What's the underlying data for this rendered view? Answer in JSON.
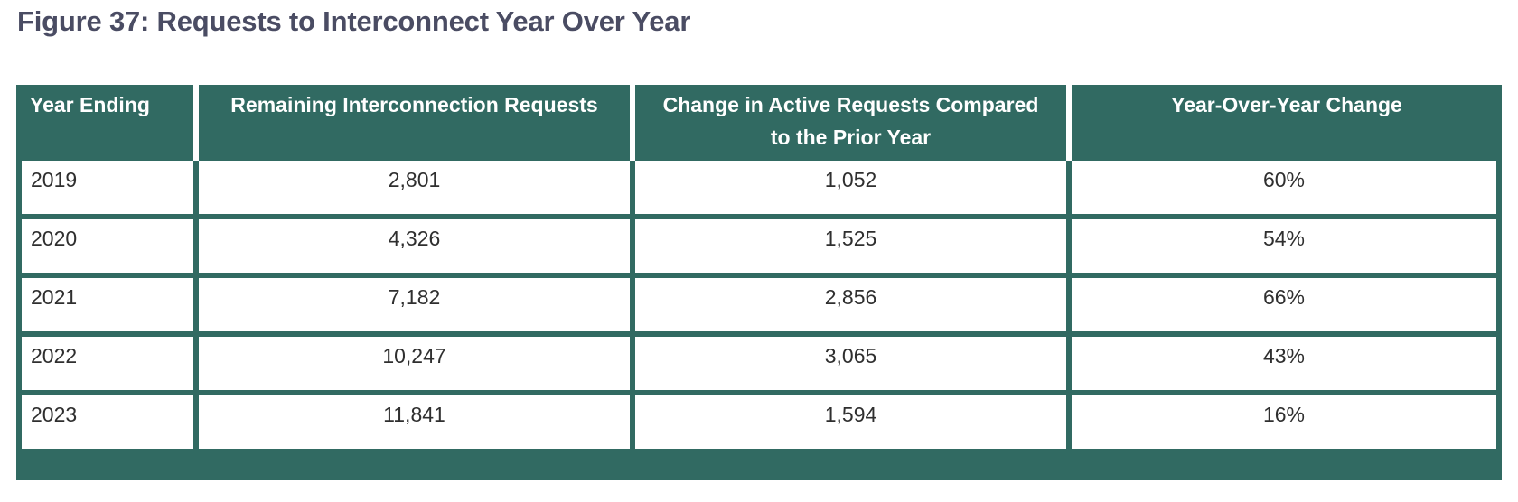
{
  "figure": {
    "title": "Figure 37: Requests to Interconnect Year Over Year"
  },
  "table": {
    "headers": {
      "year_ending": "Year Ending",
      "remaining": "Remaining Interconnection Requests",
      "change_line1": "Change in Active Requests Compared",
      "change_line2": "to the Prior Year",
      "yoy": "Year-Over-Year Change"
    },
    "rows": [
      {
        "year": "2019",
        "remaining": "2,801",
        "change": "1,052",
        "yoy": "60%"
      },
      {
        "year": "2020",
        "remaining": "4,326",
        "change": "1,525",
        "yoy": "54%"
      },
      {
        "year": "2021",
        "remaining": "7,182",
        "change": "2,856",
        "yoy": "66%"
      },
      {
        "year": "2022",
        "remaining": "10,247",
        "change": "3,065",
        "yoy": "43%"
      },
      {
        "year": "2023",
        "remaining": "11,841",
        "change": "1,594",
        "yoy": "16%"
      }
    ]
  },
  "colors": {
    "header_bg": "#316a62",
    "title_text": "#4a4c63",
    "cell_text": "#2f2f2f",
    "cell_bg": "#ffffff"
  }
}
